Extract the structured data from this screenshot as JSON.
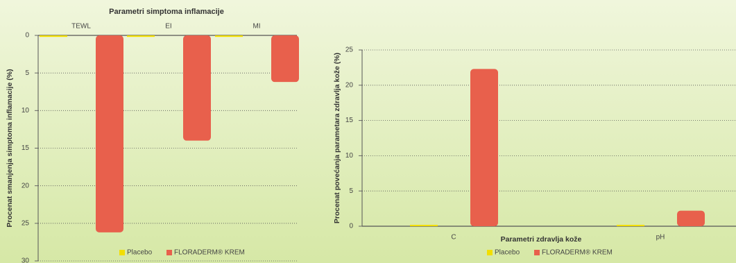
{
  "chart_data": [
    {
      "type": "bar",
      "title": "Parametri simptoma inflamacije",
      "y_label": "Procenat smanjenja simptoma inflamacije (%)",
      "categories": [
        "TEWL",
        "EI",
        "MI"
      ],
      "series": [
        {
          "name": "Placebo",
          "color": "#f2de00",
          "values": [
            0.2,
            0.2,
            0.2
          ]
        },
        {
          "name": "FLORADERM® KREM",
          "color": "#e8604c",
          "values": [
            26.2,
            14.0,
            6.2
          ]
        }
      ],
      "ylim": [
        0,
        30
      ],
      "yticks": [
        0,
        5,
        10,
        15,
        20,
        25,
        30
      ],
      "inverted": true,
      "grid": true,
      "legend": "bottom"
    },
    {
      "type": "bar",
      "x_label": "Parametri zdravlja kože",
      "y_label": "Procenat povećanja parametara zdravlja kože (%)",
      "categories": [
        "C",
        "pH"
      ],
      "series": [
        {
          "name": "Placebo",
          "color": "#f2de00",
          "values": [
            0.2,
            0.2
          ]
        },
        {
          "name": "FLORADERM® KREM",
          "color": "#e8604c",
          "values": [
            22.3,
            2.2
          ]
        }
      ],
      "ylim": [
        0,
        25
      ],
      "yticks": [
        0,
        5,
        10,
        15,
        20,
        25
      ],
      "inverted": false,
      "grid": true,
      "legend": "bottom"
    }
  ]
}
